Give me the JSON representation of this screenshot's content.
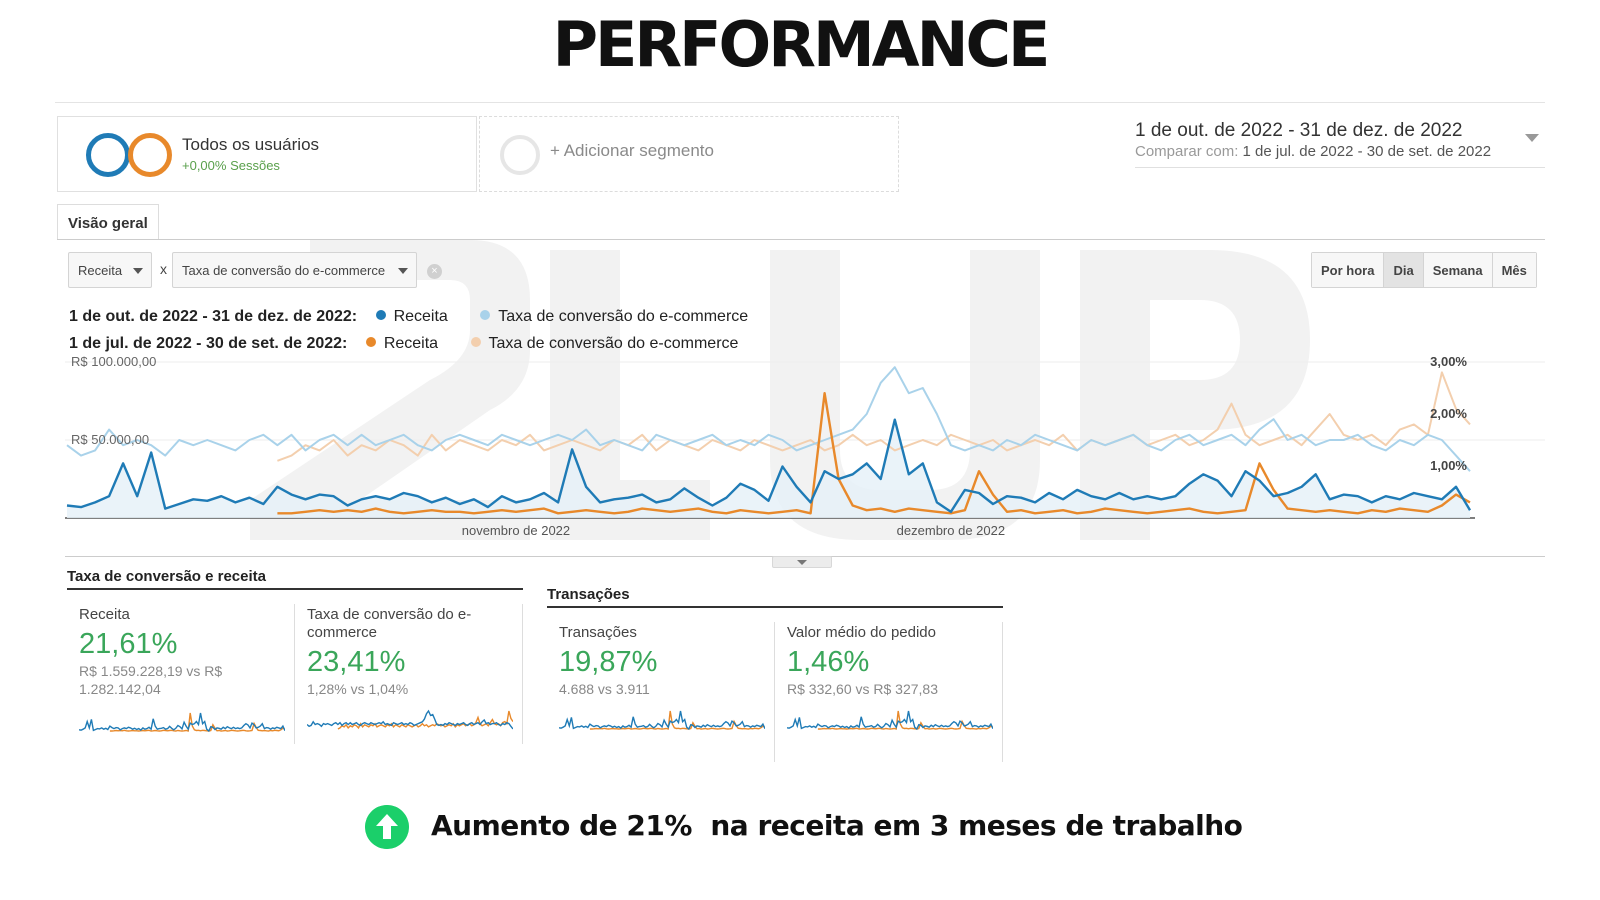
{
  "page": {
    "title": "PERFORMANCE"
  },
  "segments": {
    "primary": {
      "name": "Todos os usuários",
      "sub": "+0,00% Sessões"
    },
    "add_label": "+ Adicionar segmento"
  },
  "date_range": {
    "main": "1 de out. de 2022 - 31 de dez. de 2022",
    "compare_prefix": "Comparar com:",
    "compare_range": "1 de jul. de 2022 - 30 de set. de 2022"
  },
  "tabs": [
    {
      "label": "Visão geral",
      "active": true
    }
  ],
  "metric_selectors": {
    "primary": "Receita",
    "separator": "x",
    "secondary": "Taxa de conversão do e-commerce"
  },
  "period_buttons": [
    {
      "label": "Por hora",
      "active": false
    },
    {
      "label": "Dia",
      "active": true
    },
    {
      "label": "Semana",
      "active": false
    },
    {
      "label": "Mês",
      "active": false
    }
  ],
  "legend": {
    "current": {
      "label": "1 de out. de 2022 - 31 de dez. de 2022:",
      "metric1": "Receita",
      "metric2": "Taxa de conversão do e-commerce"
    },
    "previous": {
      "label": "1 de jul. de 2022 - 30 de set. de 2022:",
      "metric1": "Receita",
      "metric2": "Taxa de conversão do e-commerce"
    }
  },
  "colors": {
    "receita_current": "#1f7bb6",
    "receita_previous": "#e8892b",
    "conv_current": "#a9d2ea",
    "conv_previous": "#f3cfae",
    "positive": "#3aa65a",
    "up_icon": "#1bcf6a"
  },
  "chart_data": {
    "type": "line",
    "left_axis": {
      "ticks": [
        "R$ 100.000,00",
        "R$ 50.000,00"
      ],
      "ylim": [
        0,
        100000
      ]
    },
    "right_axis": {
      "ticks": [
        "3,00%",
        "2,00%",
        "1,00%"
      ],
      "ylim": [
        0,
        3
      ]
    },
    "x_labels": [
      "novembro de 2022",
      "dezembro de 2022"
    ],
    "grid": true,
    "series": [
      {
        "name": "Receita",
        "period": "1 de out. de 2022 - 31 de dez. de 2022",
        "axis": "left",
        "values": [
          8000,
          7000,
          10000,
          14000,
          35000,
          14000,
          42000,
          6000,
          9000,
          12000,
          11000,
          14000,
          10000,
          13000,
          9000,
          20000,
          15000,
          12000,
          15000,
          14000,
          8000,
          12000,
          14000,
          12000,
          16000,
          14000,
          10000,
          13000,
          9000,
          12000,
          7000,
          14000,
          10000,
          12000,
          16000,
          10000,
          44000,
          20000,
          10000,
          12000,
          13000,
          15000,
          10000,
          12000,
          19000,
          13000,
          8000,
          13000,
          22000,
          18000,
          11000,
          33000,
          20000,
          10000,
          30000,
          25000,
          28000,
          35000,
          25000,
          63000,
          28000,
          35000,
          10000,
          4000,
          18000,
          16000,
          9000,
          14000,
          13000,
          10000,
          16000,
          12000,
          18000,
          14000,
          12000,
          16000,
          12000,
          14000,
          12000,
          14000,
          22000,
          28000,
          24000,
          14000,
          30000,
          24000,
          14000,
          16000,
          20000,
          28000,
          12000,
          15000,
          14000,
          10000,
          14000,
          12000,
          16000,
          14000,
          12000,
          20000,
          5000
        ]
      },
      {
        "name": "Taxa de conversão do e-commerce",
        "period": "1 de out. de 2022 - 31 de dez. de 2022",
        "axis": "right",
        "values": [
          1.4,
          1.2,
          1.3,
          1.7,
          1.4,
          1.5,
          1.4,
          1.2,
          1.5,
          1.4,
          1.5,
          1.4,
          1.3,
          1.5,
          1.6,
          1.4,
          1.6,
          1.3,
          1.5,
          1.6,
          1.4,
          1.6,
          1.4,
          1.5,
          1.6,
          1.4,
          1.3,
          1.5,
          1.6,
          1.5,
          1.4,
          1.6,
          1.5,
          1.4,
          1.5,
          1.6,
          1.5,
          1.7,
          1.4,
          1.5,
          1.4,
          1.3,
          1.6,
          1.5,
          1.4,
          1.5,
          1.6,
          1.4,
          1.5,
          1.4,
          1.6,
          1.5,
          1.3,
          1.4,
          1.5,
          1.6,
          1.7,
          2.0,
          2.6,
          2.9,
          2.4,
          2.5,
          2.0,
          1.4,
          1.3,
          1.4,
          1.3,
          1.5,
          1.4,
          1.6,
          1.5,
          1.4,
          1.3,
          1.5,
          1.4,
          1.5,
          1.6,
          1.4,
          1.3,
          1.5,
          1.6,
          1.4,
          1.5,
          1.6,
          1.4,
          1.7,
          1.9,
          1.5,
          1.6,
          1.4,
          1.5,
          1.5,
          1.6,
          1.4,
          1.3,
          1.5,
          1.4,
          1.6,
          1.5,
          1.2,
          0.9
        ]
      },
      {
        "name": "Receita",
        "period": "1 de jul. de 2022 - 30 de set. de 2022",
        "axis": "left",
        "values": [
          null,
          null,
          null,
          null,
          null,
          null,
          null,
          null,
          null,
          null,
          null,
          null,
          null,
          null,
          null,
          3000,
          3000,
          4000,
          5000,
          4000,
          5000,
          4000,
          6000,
          4000,
          3000,
          4000,
          5000,
          4000,
          4000,
          3000,
          4000,
          5000,
          4000,
          5000,
          6000,
          3000,
          4000,
          5000,
          4000,
          3000,
          4000,
          6000,
          5000,
          4000,
          5000,
          6000,
          4000,
          3000,
          5000,
          4000,
          3000,
          4000,
          5000,
          3000,
          80000,
          25000,
          8000,
          5000,
          6000,
          4000,
          6000,
          5000,
          4000,
          3000,
          5000,
          30000,
          15000,
          4000,
          5000,
          3000,
          4000,
          5000,
          3000,
          4000,
          6000,
          5000,
          4000,
          3000,
          4000,
          5000,
          6000,
          4000,
          3000,
          4000,
          5000,
          35000,
          18000,
          6000,
          5000,
          4000,
          5000,
          4000,
          3000,
          5000,
          4000,
          6000,
          5000,
          4000,
          8000,
          15000,
          10000
        ]
      },
      {
        "name": "Taxa de conversão do e-commerce",
        "period": "1 de jul. de 2022 - 30 de set. de 2022",
        "axis": "right",
        "values": [
          null,
          null,
          null,
          null,
          null,
          null,
          null,
          null,
          null,
          null,
          null,
          null,
          null,
          null,
          null,
          1.1,
          1.2,
          1.4,
          1.3,
          1.5,
          1.2,
          1.4,
          1.3,
          1.5,
          1.4,
          1.2,
          1.6,
          1.3,
          1.5,
          1.4,
          1.3,
          1.5,
          1.4,
          1.6,
          1.3,
          1.4,
          1.5,
          1.4,
          1.3,
          1.5,
          1.4,
          1.6,
          1.3,
          1.5,
          1.4,
          1.3,
          1.5,
          1.4,
          1.3,
          1.5,
          1.4,
          1.3,
          1.4,
          1.5,
          1.3,
          1.4,
          1.6,
          1.4,
          1.5,
          1.3,
          1.4,
          1.5,
          1.4,
          1.6,
          1.5,
          1.4,
          1.5,
          1.3,
          1.4,
          1.5,
          1.4,
          1.6,
          1.3,
          1.5,
          1.4,
          1.5,
          1.6,
          1.4,
          1.5,
          1.6,
          1.4,
          1.5,
          1.7,
          2.2,
          1.6,
          1.4,
          1.5,
          1.6,
          1.4,
          1.7,
          2.0,
          1.6,
          1.5,
          1.6,
          1.4,
          1.7,
          1.8,
          1.6,
          2.8,
          2.1,
          1.8
        ]
      }
    ]
  },
  "scorecards": {
    "group1": {
      "title": "Taxa de conversão e receita",
      "cards": [
        {
          "label": "Receita",
          "value": "21,61%",
          "compare": "R$ 1.559.228,19 vs R$ 1.282.142,04"
        },
        {
          "label": "Taxa de conversão do e-commerce",
          "value": "23,41%",
          "compare": "1,28% vs 1,04%"
        }
      ]
    },
    "group2": {
      "title": "Transações",
      "cards": [
        {
          "label": "Transações",
          "value": "19,87%",
          "compare": "4.688 vs 3.911"
        },
        {
          "label": "Valor médio do pedido",
          "value": "1,46%",
          "compare": "R$ 332,60 vs R$ 327,83"
        }
      ]
    }
  },
  "highlight": {
    "text": "Aumento de 21%  na receita em 3 meses de trabalho",
    "icon": "arrow-up-circle-icon"
  }
}
